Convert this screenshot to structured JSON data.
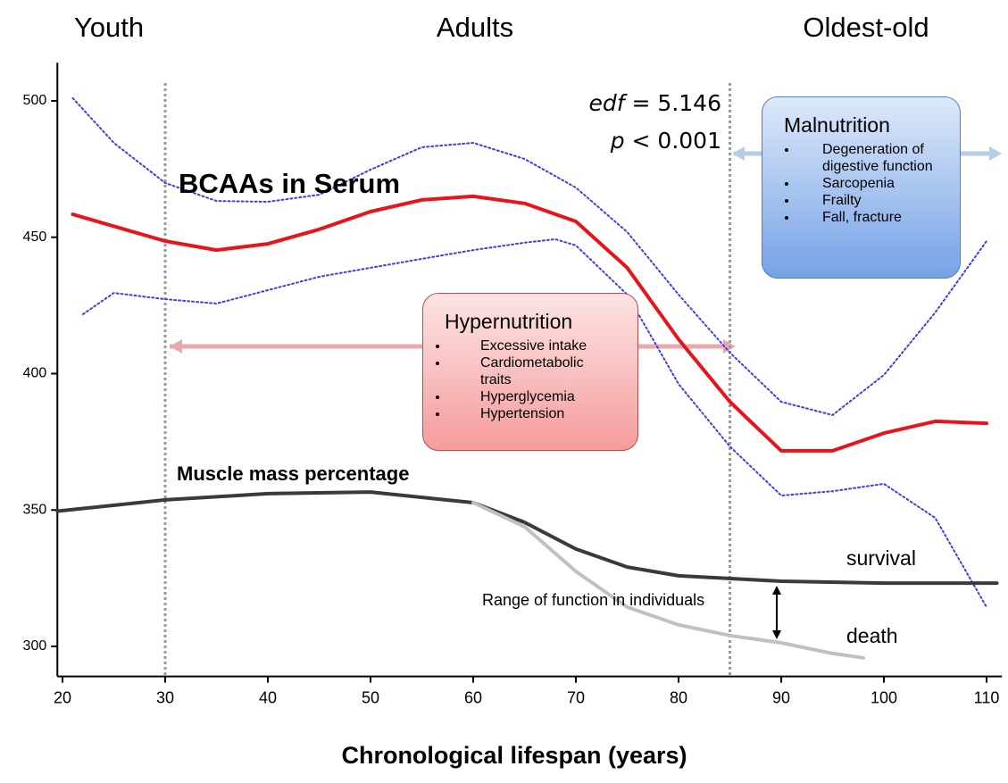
{
  "chart_data": {
    "type": "line",
    "period_labels": [
      "Youth",
      "Adults",
      "Oldest-old"
    ],
    "xlabel": "Chronological lifespan (years)",
    "xlim": [
      19.5,
      111.5
    ],
    "xticks": [
      20,
      30,
      40,
      50,
      60,
      70,
      80,
      90,
      100,
      110
    ],
    "ylim": [
      289,
      514
    ],
    "yticks": [
      300,
      350,
      400,
      450,
      500
    ],
    "vlines": [
      30,
      85
    ],
    "stat_lines": [
      [
        "edf",
        " = 5.146"
      ],
      [
        "p",
        " < 0.001"
      ]
    ],
    "muscle_label": "Muscle mass percentage",
    "range_label": "Range of function in individuals",
    "series": [
      {
        "name": "BCAAs in Serum",
        "color": "#e8141c",
        "style": "solid",
        "x": [
          21,
          30,
          35,
          40,
          45,
          50,
          55,
          60,
          65,
          70,
          75,
          80,
          85,
          90,
          95,
          100,
          105,
          110
        ],
        "values": [
          458.4,
          448.6,
          445.3,
          447.6,
          452.9,
          459.4,
          463.7,
          465,
          462.4,
          455.8,
          438.8,
          412.6,
          389.7,
          371.7,
          371.7,
          378.2,
          382.5,
          381.8
        ]
      },
      {
        "color": "#3d3df0",
        "style": "dotted",
        "x": [
          21,
          25,
          30,
          35,
          40,
          45,
          50,
          55,
          60,
          65,
          70,
          75,
          80,
          85,
          90,
          95,
          100,
          105,
          110
        ],
        "values": [
          501,
          484.6,
          469.9,
          463.3,
          463,
          465.6,
          474.8,
          483,
          484.6,
          478.7,
          468.2,
          451.9,
          429,
          407.7,
          389.7,
          384.8,
          399.5,
          422.4,
          448.6
        ]
      },
      {
        "color": "#3d3df0",
        "style": "dotted",
        "x": [
          22,
          25,
          30,
          35,
          40,
          45,
          50,
          55,
          60,
          65,
          68,
          70,
          75,
          80,
          85,
          90,
          95,
          100,
          105,
          110
        ],
        "values": [
          421.8,
          429.6,
          427.3,
          425.7,
          430.6,
          435.5,
          438.8,
          442.1,
          445.3,
          448,
          449.3,
          447,
          429,
          396.2,
          373.3,
          355.3,
          356.9,
          359.6,
          347.1,
          314.4
        ]
      },
      {
        "name": "survival",
        "color": "#3a3a3a",
        "style": "solid",
        "x": [
          19.5,
          30,
          40,
          50,
          60,
          65,
          70,
          75,
          80,
          90,
          100,
          111
        ],
        "values": [
          349.6,
          353.7,
          356,
          356.6,
          352.7,
          345.5,
          335.7,
          329.1,
          325.9,
          323.9,
          323.2,
          323.2
        ]
      },
      {
        "name": "death",
        "color": "#c0c0c0",
        "style": "solid",
        "x": [
          60,
          65,
          70,
          75,
          80,
          85,
          90,
          95,
          98
        ],
        "values": [
          352.7,
          343.9,
          327.5,
          314.4,
          307.9,
          304,
          301.3,
          297.4,
          295.8
        ]
      }
    ],
    "boxes": [
      {
        "title": "Hypernutrition",
        "items": [
          "Excessive intake",
          "Cardiometabolic traits",
          "Hyperglycemia",
          "Hypertension"
        ]
      },
      {
        "title": "Malnutrition",
        "items": [
          "Degeneration of digestive function",
          "Sarcopenia",
          "Frailty",
          "Fall, fracture"
        ]
      }
    ]
  }
}
